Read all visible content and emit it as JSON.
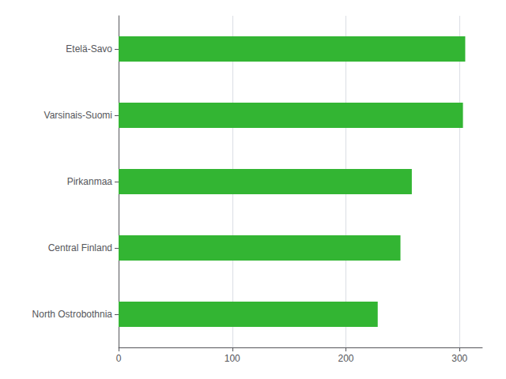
{
  "chart_data": {
    "type": "bar",
    "orientation": "horizontal",
    "categories": [
      "North Ostrobothnia",
      "Central Finland",
      "Pirkanmaa",
      "Varsinais-Suomi",
      "Etelä-Savo"
    ],
    "values": [
      228,
      248,
      258,
      303,
      305
    ],
    "color": "#33b533",
    "xlim": [
      0,
      320
    ],
    "xticks": [
      0,
      100,
      200,
      300
    ],
    "grid": true
  }
}
